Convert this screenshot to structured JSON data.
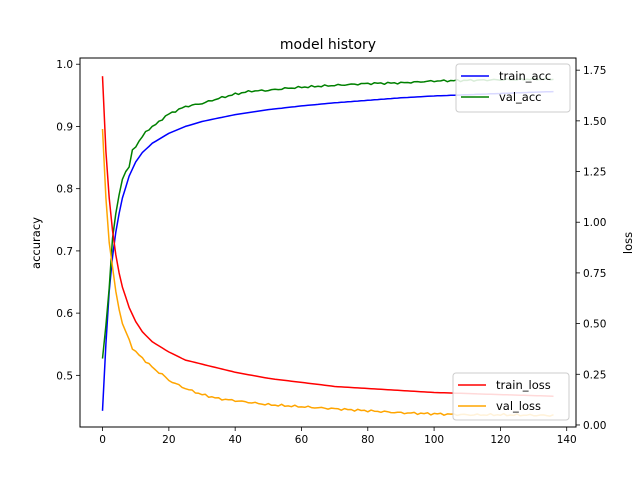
{
  "chart_data": {
    "type": "line",
    "title": "model history",
    "xlabel": "",
    "ylabel_left": "accuracy",
    "ylabel_right": "loss",
    "xlim": [
      -6.8,
      142.8
    ],
    "ylim_left": [
      0.417,
      1.01
    ],
    "ylim_right": [
      -0.01,
      1.81
    ],
    "x_ticks": [
      "0",
      "20",
      "40",
      "60",
      "80",
      "100",
      "120",
      "140"
    ],
    "y_left_ticks": [
      "0.5",
      "0.6",
      "0.7",
      "0.8",
      "0.9",
      "1.0"
    ],
    "y_right_ticks": [
      "0.00",
      "0.25",
      "0.50",
      "0.75",
      "1.00",
      "1.25",
      "1.50",
      "1.75"
    ],
    "grid": false,
    "legends": [
      {
        "placement": "top-right",
        "axis": "accuracy",
        "entries": [
          "train_acc",
          "val_acc"
        ]
      },
      {
        "placement": "bottom-right",
        "axis": "loss",
        "entries": [
          "train_loss",
          "val_loss"
        ]
      }
    ],
    "epochs": 137,
    "series": [
      {
        "name": "train_acc",
        "axis": "left",
        "color": "#0000ff",
        "x": [
          0,
          1,
          2,
          3,
          4,
          5,
          6,
          8,
          10,
          12,
          15,
          20,
          25,
          30,
          40,
          50,
          60,
          70,
          80,
          90,
          100,
          110,
          120,
          130,
          136
        ],
        "values": [
          0.443,
          0.55,
          0.635,
          0.69,
          0.73,
          0.76,
          0.785,
          0.82,
          0.843,
          0.858,
          0.873,
          0.889,
          0.9,
          0.908,
          0.919,
          0.927,
          0.933,
          0.938,
          0.942,
          0.946,
          0.949,
          0.951,
          0.953,
          0.955,
          0.956
        ]
      },
      {
        "name": "val_acc",
        "axis": "left",
        "color": "#008000",
        "x": [
          0,
          1,
          2,
          3,
          4,
          5,
          6,
          7,
          8,
          9,
          10,
          11,
          12,
          13,
          14,
          16,
          18,
          20,
          25,
          30,
          35,
          40,
          45,
          50,
          55,
          60,
          70,
          80,
          90,
          100,
          110,
          120,
          130,
          136
        ],
        "values": [
          0.527,
          0.58,
          0.64,
          0.72,
          0.76,
          0.79,
          0.815,
          0.828,
          0.834,
          0.862,
          0.868,
          0.876,
          0.883,
          0.891,
          0.896,
          0.903,
          0.912,
          0.92,
          0.932,
          0.937,
          0.945,
          0.952,
          0.957,
          0.958,
          0.961,
          0.963,
          0.966,
          0.969,
          0.97,
          0.973,
          0.974,
          0.975,
          0.976,
          0.976
        ]
      },
      {
        "name": "train_loss",
        "axis": "right",
        "color": "#ff0000",
        "x": [
          0,
          1,
          2,
          3,
          4,
          5,
          6,
          8,
          10,
          12,
          15,
          20,
          25,
          30,
          40,
          50,
          60,
          70,
          80,
          90,
          100,
          110,
          120,
          130,
          136
        ],
        "values": [
          1.72,
          1.35,
          1.12,
          0.96,
          0.84,
          0.75,
          0.68,
          0.58,
          0.51,
          0.46,
          0.41,
          0.36,
          0.32,
          0.3,
          0.26,
          0.23,
          0.21,
          0.19,
          0.18,
          0.17,
          0.16,
          0.155,
          0.15,
          0.145,
          0.142
        ]
      },
      {
        "name": "val_loss",
        "axis": "right",
        "color": "#ffa500",
        "x": [
          0,
          1,
          2,
          3,
          4,
          5,
          6,
          7,
          8,
          9,
          10,
          12,
          14,
          16,
          18,
          20,
          25,
          30,
          35,
          40,
          50,
          60,
          70,
          80,
          90,
          100,
          110,
          120,
          130,
          136
        ],
        "values": [
          1.46,
          1.12,
          0.9,
          0.78,
          0.66,
          0.57,
          0.5,
          0.46,
          0.42,
          0.38,
          0.36,
          0.33,
          0.3,
          0.27,
          0.25,
          0.22,
          0.18,
          0.15,
          0.13,
          0.12,
          0.1,
          0.09,
          0.08,
          0.07,
          0.06,
          0.055,
          0.05,
          0.05,
          0.048,
          0.047
        ]
      }
    ]
  }
}
